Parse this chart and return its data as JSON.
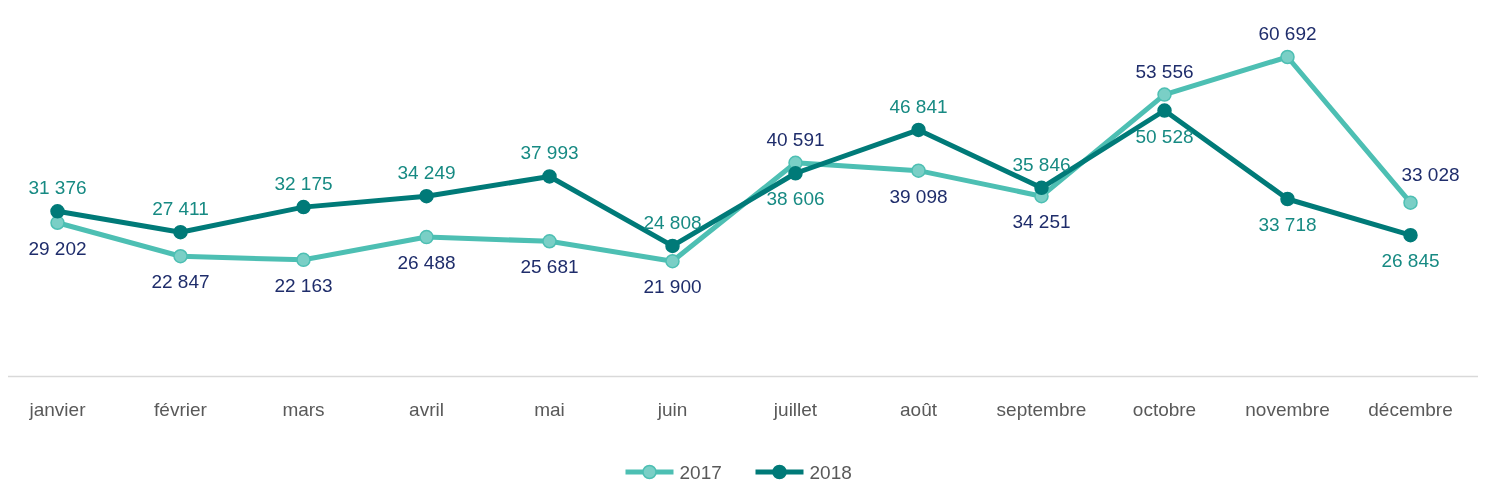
{
  "chart_data": {
    "type": "line",
    "categories": [
      "janvier",
      "février",
      "mars",
      "avril",
      "mai",
      "juin",
      "juillet",
      "août",
      "septembre",
      "octobre",
      "novembre",
      "décembre"
    ],
    "series": [
      {
        "name": "2017",
        "color": "#4dbfb3",
        "values": [
          29202,
          22847,
          22163,
          26488,
          25681,
          21900,
          40591,
          39098,
          34251,
          53556,
          60692,
          33028
        ]
      },
      {
        "name": "2018",
        "color": "#007a78",
        "values": [
          31376,
          27411,
          32175,
          34249,
          37993,
          24808,
          38606,
          46841,
          35846,
          50528,
          33718,
          26845
        ]
      }
    ],
    "data_labels": true,
    "marker": "circle",
    "line_style": "solid",
    "legend": "bottom",
    "tick_labels": "x"
  }
}
